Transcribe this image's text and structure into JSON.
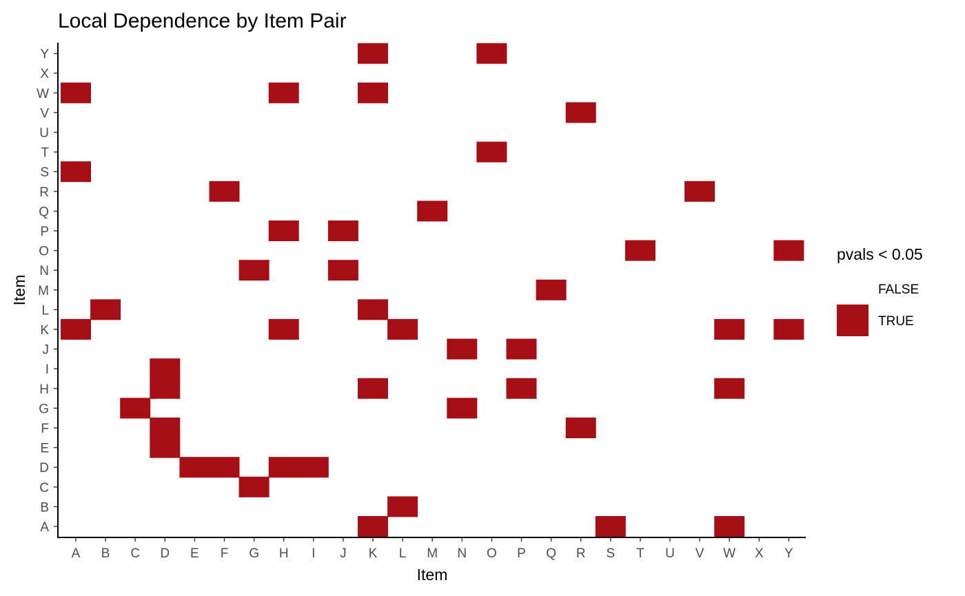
{
  "chart_data": {
    "type": "heatmap",
    "title": "Local Dependence by Item Pair",
    "xlabel": "Item",
    "ylabel": "Item",
    "x_categories": [
      "A",
      "B",
      "C",
      "D",
      "E",
      "F",
      "G",
      "H",
      "I",
      "J",
      "K",
      "L",
      "M",
      "N",
      "O",
      "P",
      "Q",
      "R",
      "S",
      "T",
      "U",
      "V",
      "W",
      "X",
      "Y"
    ],
    "y_categories": [
      "A",
      "B",
      "C",
      "D",
      "E",
      "F",
      "G",
      "H",
      "I",
      "J",
      "K",
      "L",
      "M",
      "N",
      "O",
      "P",
      "Q",
      "R",
      "S",
      "T",
      "U",
      "V",
      "W",
      "X",
      "Y"
    ],
    "fill_color": "#A50F15",
    "legend": {
      "title": "pvals < 0.05",
      "position": "right",
      "entries": [
        {
          "label": "FALSE",
          "color": "#FFFFFF"
        },
        {
          "label": "TRUE",
          "color": "#A50F15"
        }
      ]
    },
    "true_cells": [
      {
        "x": "K",
        "y": "Y"
      },
      {
        "x": "O",
        "y": "Y"
      },
      {
        "x": "A",
        "y": "W"
      },
      {
        "x": "H",
        "y": "W"
      },
      {
        "x": "K",
        "y": "W"
      },
      {
        "x": "R",
        "y": "V"
      },
      {
        "x": "O",
        "y": "T"
      },
      {
        "x": "A",
        "y": "S"
      },
      {
        "x": "F",
        "y": "R"
      },
      {
        "x": "V",
        "y": "R"
      },
      {
        "x": "M",
        "y": "Q"
      },
      {
        "x": "H",
        "y": "P"
      },
      {
        "x": "J",
        "y": "P"
      },
      {
        "x": "T",
        "y": "O"
      },
      {
        "x": "Y",
        "y": "O"
      },
      {
        "x": "G",
        "y": "N"
      },
      {
        "x": "J",
        "y": "N"
      },
      {
        "x": "Q",
        "y": "M"
      },
      {
        "x": "B",
        "y": "L"
      },
      {
        "x": "K",
        "y": "L"
      },
      {
        "x": "A",
        "y": "K"
      },
      {
        "x": "H",
        "y": "K"
      },
      {
        "x": "L",
        "y": "K"
      },
      {
        "x": "W",
        "y": "K"
      },
      {
        "x": "Y",
        "y": "K"
      },
      {
        "x": "N",
        "y": "J"
      },
      {
        "x": "P",
        "y": "J"
      },
      {
        "x": "D",
        "y": "I"
      },
      {
        "x": "D",
        "y": "H"
      },
      {
        "x": "K",
        "y": "H"
      },
      {
        "x": "P",
        "y": "H"
      },
      {
        "x": "W",
        "y": "H"
      },
      {
        "x": "C",
        "y": "G"
      },
      {
        "x": "N",
        "y": "G"
      },
      {
        "x": "D",
        "y": "F"
      },
      {
        "x": "R",
        "y": "F"
      },
      {
        "x": "D",
        "y": "E"
      },
      {
        "x": "E",
        "y": "D"
      },
      {
        "x": "F",
        "y": "D"
      },
      {
        "x": "H",
        "y": "D"
      },
      {
        "x": "I",
        "y": "D"
      },
      {
        "x": "G",
        "y": "C"
      },
      {
        "x": "L",
        "y": "B"
      },
      {
        "x": "K",
        "y": "A"
      },
      {
        "x": "S",
        "y": "A"
      },
      {
        "x": "W",
        "y": "A"
      }
    ],
    "grid": false
  }
}
